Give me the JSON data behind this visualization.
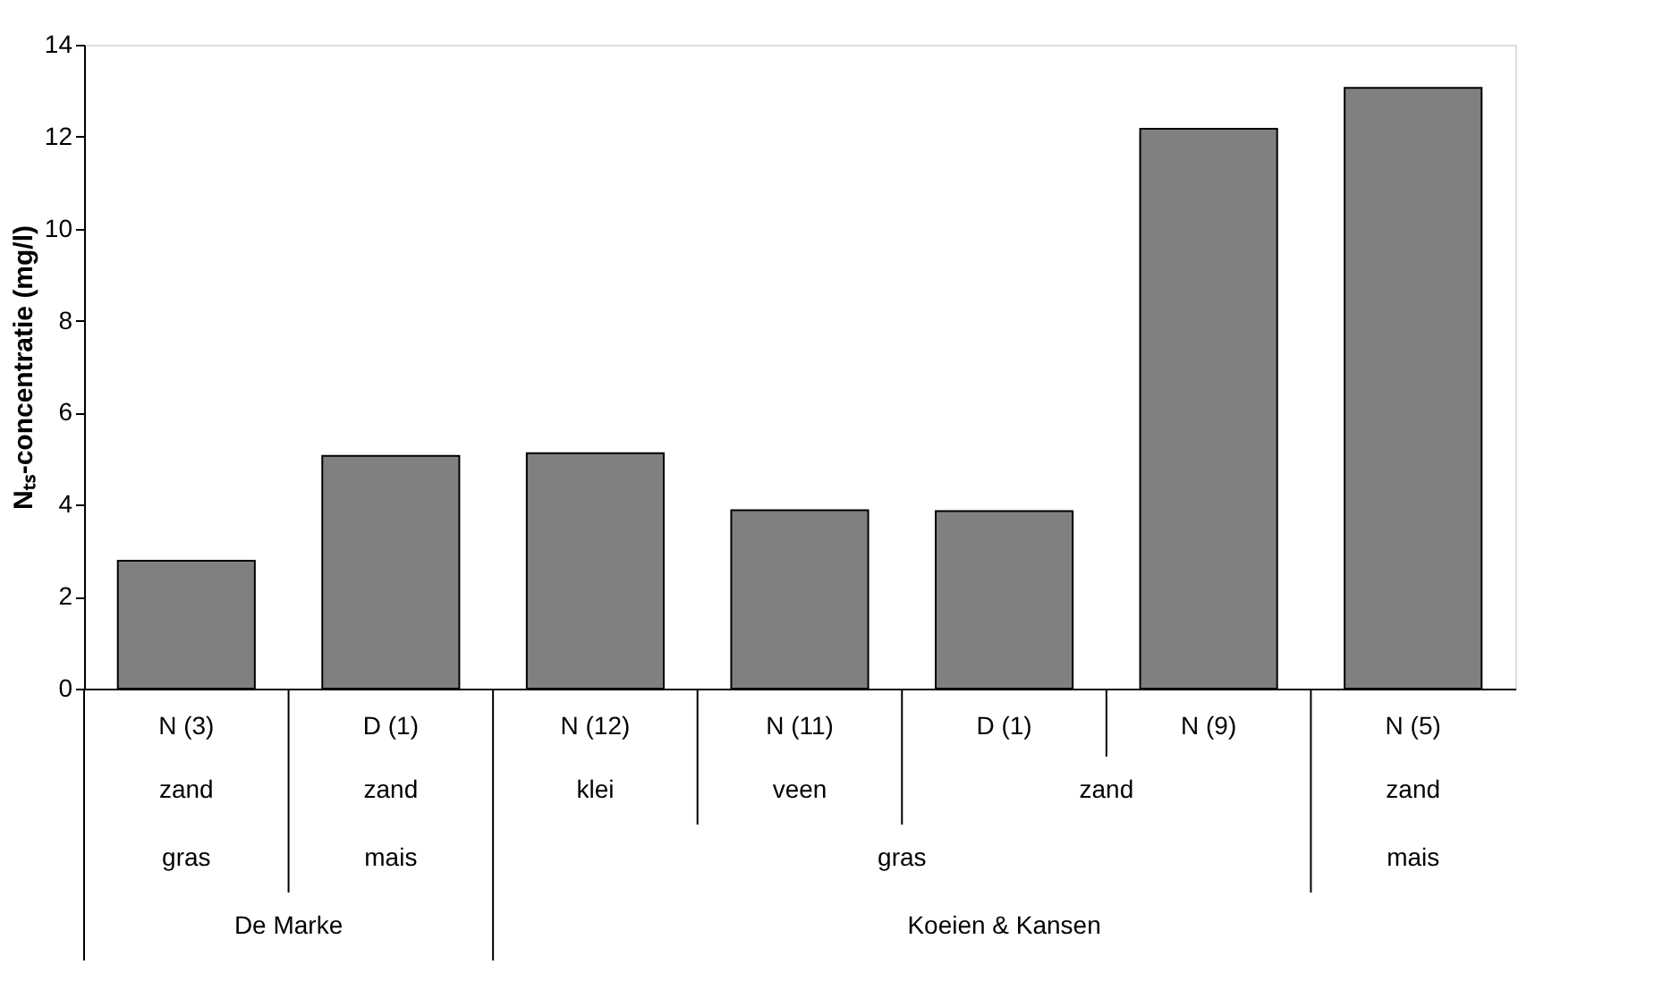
{
  "chart_data": {
    "type": "bar",
    "ylabel": "Nₜₛ-concentratie (mg/l)",
    "categories": [
      "N (3)",
      "D (1)",
      "N (12)",
      "N (11)",
      "D (1)",
      "N (9)",
      "N (5)"
    ],
    "values": [
      2.78,
      5.06,
      5.12,
      3.88,
      3.86,
      12.17,
      13.06
    ],
    "color": "#808080",
    "ylim": [
      0,
      14
    ],
    "yticks": [
      0,
      2,
      4,
      6,
      8,
      10,
      12,
      14
    ],
    "grid": false,
    "annotations": [
      "zand",
      "zand",
      "klei",
      "veen",
      "zand",
      "zand",
      "gras",
      "mais",
      "gras",
      "mais",
      "De Marke",
      "Koeien & Kansen"
    ]
  }
}
